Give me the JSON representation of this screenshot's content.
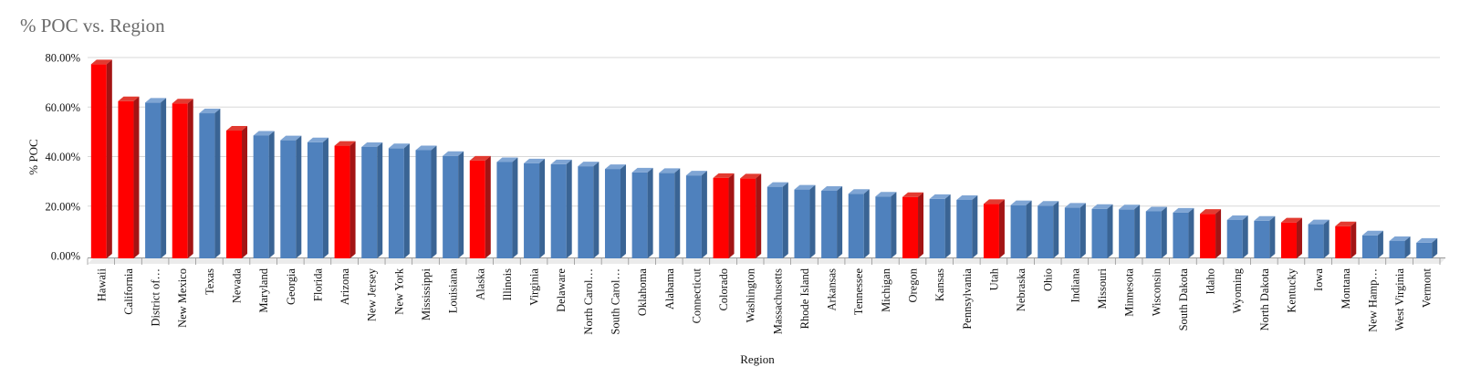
{
  "title": "% POC vs. Region",
  "axes": {
    "y_title": "% POC",
    "x_title": "Region",
    "y_ticks": [
      "0.00%",
      "20.00%",
      "40.00%",
      "60.00%",
      "80.00%"
    ]
  },
  "colors": {
    "red": {
      "front": "#FF0000",
      "top": "#E23B31",
      "side": "#A31414"
    },
    "blue": {
      "front": "#4F81BD",
      "top": "#7FA5D4",
      "side": "#3A6494"
    },
    "gridline": "#D8D8D8",
    "axis_line": "#9B9B9B",
    "floor": "#EBEBEB",
    "category_tick": "#8F8F8F",
    "title_text": "#6B6B6B"
  },
  "chart_data": {
    "type": "bar",
    "title": "% POC vs. Region",
    "xlabel": "Region",
    "ylabel": "% POC",
    "ylim": [
      0,
      80
    ],
    "y_unit": "percent",
    "grid": true,
    "legend": false,
    "style": "3d-column",
    "categories": [
      "Hawaii",
      "California",
      "District of…",
      "New Mexico",
      "Texas",
      "Nevada",
      "Maryland",
      "Georgia",
      "Florida",
      "Arizona",
      "New Jersey",
      "New York",
      "Mississippi",
      "Louisiana",
      "Alaska",
      "Illinois",
      "Virginia",
      "Delaware",
      "North Carol…",
      "South Carol…",
      "Oklahoma",
      "Alabama",
      "Connecticut",
      "Colorado",
      "Washington",
      "Massachusetts",
      "Rhode Island",
      "Arkansas",
      "Tennessee",
      "Michigan",
      "Oregon",
      "Kansas",
      "Pennsylvania",
      "Utah",
      "Nebraska",
      "Ohio",
      "Indiana",
      "Missouri",
      "Minnesota",
      "Wisconsin",
      "South Dakota",
      "Idaho",
      "Wyoming",
      "North Dakota",
      "Kentucky",
      "Iowa",
      "Montana",
      "New Hamp…",
      "West Virginia",
      "Vermont"
    ],
    "values": [
      78.4,
      63.5,
      62.9,
      62.6,
      58.6,
      51.6,
      49.6,
      47.7,
      46.9,
      45.5,
      45.0,
      44.5,
      43.7,
      41.4,
      39.5,
      38.9,
      38.4,
      38.0,
      37.2,
      36.1,
      34.7,
      34.5,
      33.5,
      32.5,
      32.3,
      28.9,
      27.8,
      27.3,
      26.1,
      25.0,
      24.8,
      24.0,
      23.6,
      22.0,
      21.5,
      21.3,
      20.5,
      20.0,
      19.8,
      19.0,
      18.5,
      18.0,
      15.5,
      15.2,
      14.5,
      13.8,
      13.0,
      9.3,
      7.0,
      6.3
    ],
    "bar_colors": [
      "red",
      "red",
      "blue",
      "red",
      "blue",
      "red",
      "blue",
      "blue",
      "blue",
      "red",
      "blue",
      "blue",
      "blue",
      "blue",
      "red",
      "blue",
      "blue",
      "blue",
      "blue",
      "blue",
      "blue",
      "blue",
      "blue",
      "red",
      "red",
      "blue",
      "blue",
      "blue",
      "blue",
      "blue",
      "red",
      "blue",
      "blue",
      "red",
      "blue",
      "blue",
      "blue",
      "blue",
      "blue",
      "blue",
      "blue",
      "red",
      "blue",
      "blue",
      "red",
      "blue",
      "red",
      "blue",
      "blue",
      "blue"
    ]
  }
}
